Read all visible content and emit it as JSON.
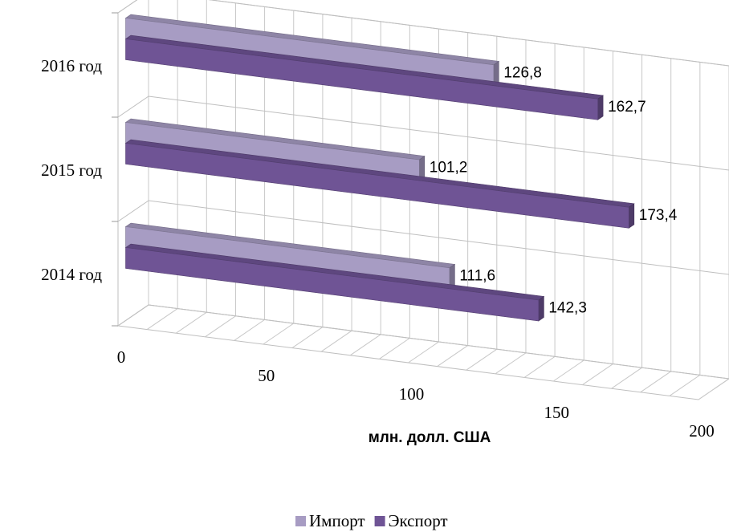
{
  "chart_data": {
    "type": "bar",
    "orientation": "horizontal",
    "three_d": true,
    "categories": [
      "2016 год",
      "2015 год",
      "2014 год"
    ],
    "series": [
      {
        "name": "Импорт",
        "values": [
          126.8,
          101.2,
          111.6
        ],
        "labels": [
          "126,8",
          "101,2",
          "111,6"
        ],
        "color": "#a79cc3"
      },
      {
        "name": "Экспорт",
        "values": [
          162.7,
          173.4,
          142.3
        ],
        "labels": [
          "162,7",
          "173,4",
          "142,3"
        ],
        "color": "#6f5495"
      }
    ],
    "x_ticks": [
      "0",
      "50",
      "100",
      "150",
      "200"
    ],
    "xlim": [
      0,
      200
    ],
    "xlabel": "млн. долл. США",
    "grid": true,
    "legend_position": "bottom"
  }
}
